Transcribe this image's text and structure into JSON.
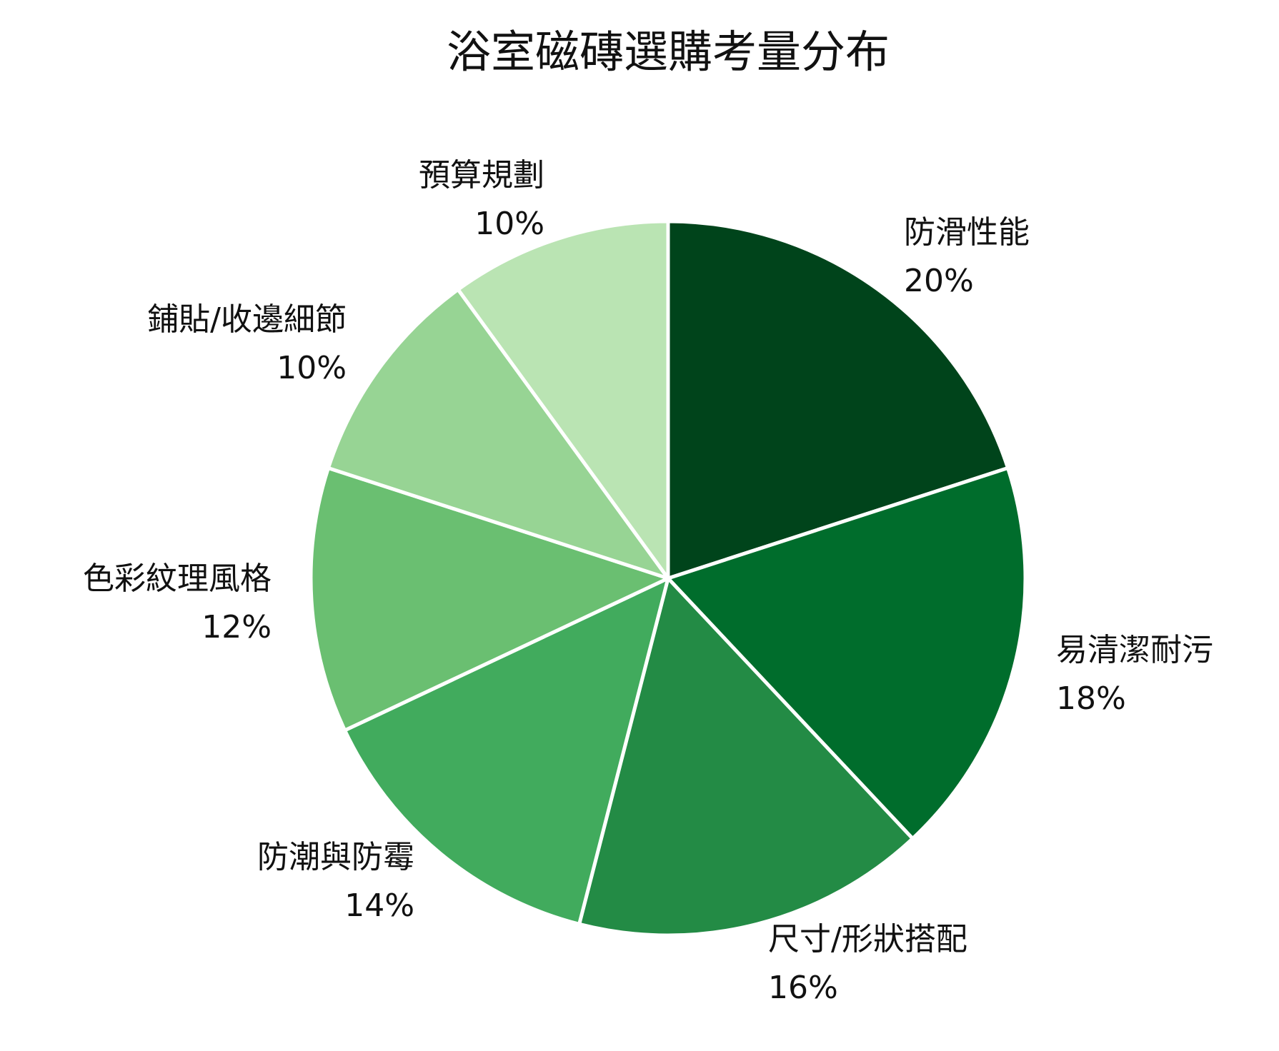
{
  "chart_data": {
    "type": "pie",
    "title": "浴室磁磚選購考量分布",
    "categories": [
      "防滑性能",
      "易清潔耐污",
      "尺寸/形狀搭配",
      "防潮與防霉",
      "色彩紋理風格",
      "鋪貼/收邊細節",
      "預算規劃"
    ],
    "values": [
      20,
      18,
      16,
      14,
      12,
      10,
      10
    ],
    "value_labels": [
      "20%",
      "18%",
      "16%",
      "14%",
      "12%",
      "10%",
      "10%"
    ],
    "colors": [
      "#00441b",
      "#006d2c",
      "#238b45",
      "#41ab5d",
      "#6abf71",
      "#97d494",
      "#bae4b3"
    ],
    "start_angle": "12 o'clock",
    "direction": "clockwise",
    "slice_separator_color": "#ffffff",
    "legend": "none (labels placed outside slices)"
  }
}
